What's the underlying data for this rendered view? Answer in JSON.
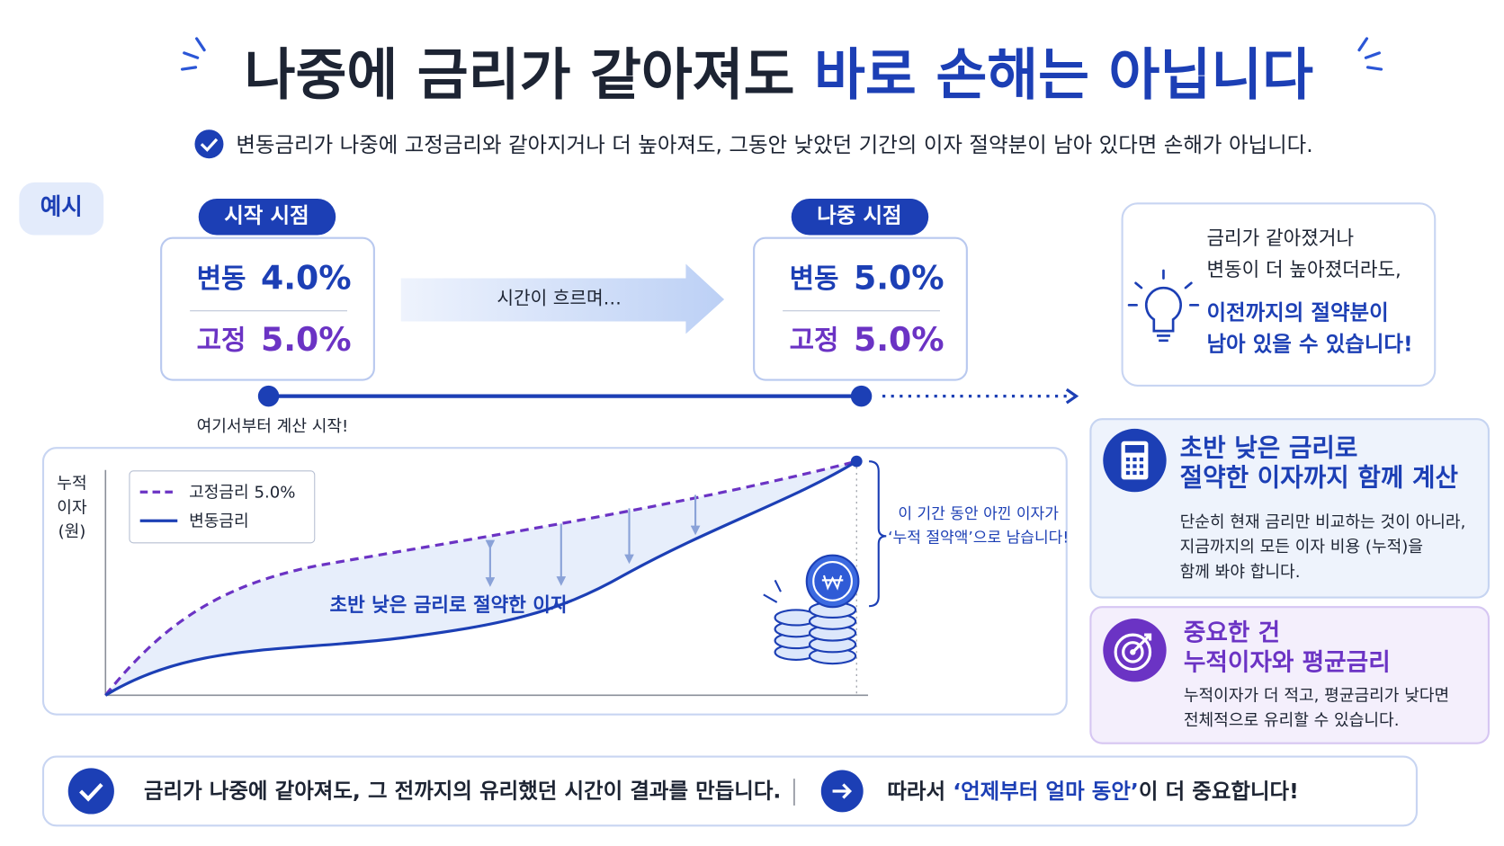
{
  "header": {
    "title_dark": "나중에 금리가 같아져도",
    "title_blue": "바로 손해는 아닙니다",
    "subtitle": "변동금리가 나중에 고정금리와 같아지거나 더 높아져도, 그동안 낮았던 기간의 이자 절약분이 남아 있다면 손해가 아닙니다."
  },
  "example_tag": "예시",
  "start": {
    "label": "시작 시점",
    "variable_label": "변동",
    "variable_rate": "4.0%",
    "fixed_label": "고정",
    "fixed_rate": "5.0%"
  },
  "arrow_text": "시간이 흐르며…",
  "end": {
    "label": "나중 시점",
    "variable_label": "변동",
    "variable_rate": "5.0%",
    "fixed_label": "고정",
    "fixed_rate": "5.0%"
  },
  "timeline_note": "여기서부터 계산 시작!",
  "callout": {
    "lines": [
      "금리가 같아졌거나",
      "변동이 더 높아졌더라도,"
    ],
    "highlight_lines": [
      "이전까지의 절약분이",
      "남아 있을 수 있습니다!"
    ]
  },
  "diagram": {
    "y_label": [
      "누적",
      "이자",
      "(원)"
    ],
    "legend": [
      "고정금리 5.0%",
      "변동금리"
    ],
    "area_label": "초반 낮은 금리로 절약한 이자",
    "brace_note": [
      "이 기간 동안 아낀 이자가",
      "‘누적 절약액’으로 남습니다!"
    ]
  },
  "cards": [
    {
      "title": [
        "초반 낮은 금리로",
        "절약한 이자까지 함께 계산"
      ],
      "body": [
        "단순히 현재 금리만 비교하는 것이 아니라,",
        "지금까지의 모든 이자 비용 (누적)을",
        "함께 봐야 합니다."
      ]
    },
    {
      "title": [
        "중요한 건",
        "누적이자와 평균금리"
      ],
      "body": [
        "누적이자가 더 적고, 평균금리가 낮다면",
        "전체적으로 유리할 수 있습니다."
      ]
    }
  ],
  "footer": {
    "left": "금리가 나중에 같아져도, 그 전까지의 유리했던 시간이 결과를 만듭니다.",
    "right_prefix": "따라서",
    "right_highlight": "‘언제부터 얼마 동안’",
    "right_rest": "이 더 중요합니다!"
  }
}
